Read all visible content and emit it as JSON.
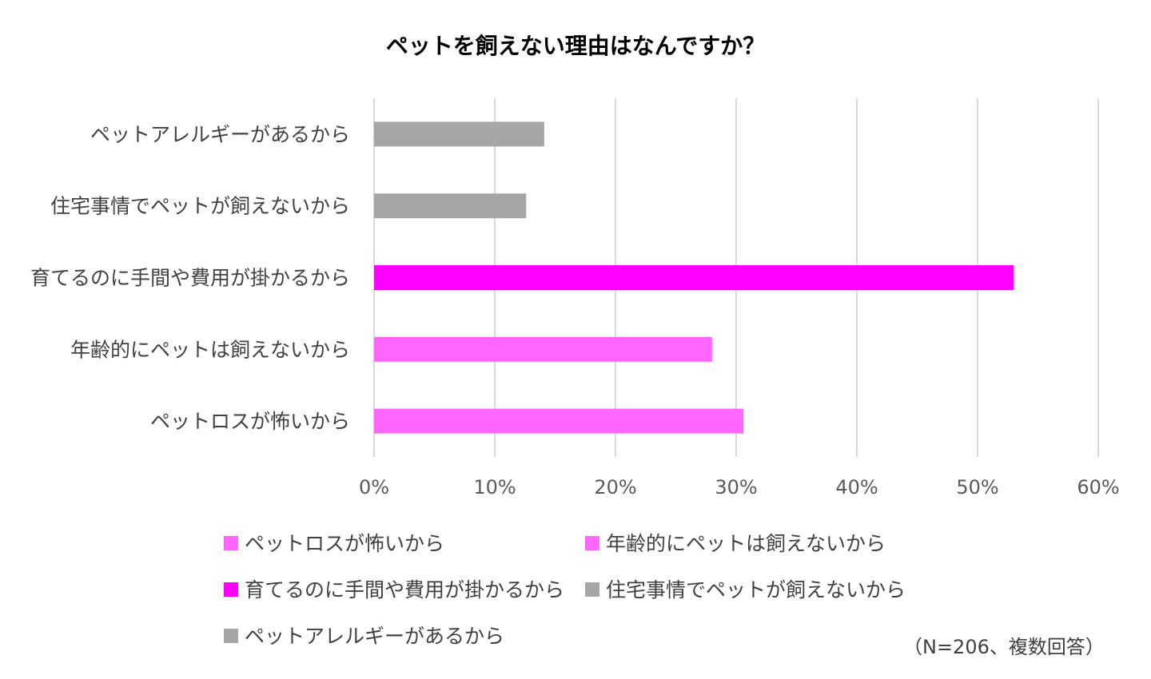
{
  "chart_data": {
    "type": "bar",
    "orientation": "horizontal",
    "title": "ペットを飼えない理由はなんですか？",
    "categories": [
      "ペットアレルギーがあるから",
      "住宅事情でペットが飼えないから",
      "育てるのに手間や費用が掛かるから",
      "年齢的にペットは飼えないから",
      "ペットロスが怖いから"
    ],
    "values": [
      14.1,
      12.6,
      53.0,
      28.0,
      30.6
    ],
    "colors": [
      "#a6a6a6",
      "#a6a6a6",
      "#ff00ff",
      "#ff66ff",
      "#ff66ff"
    ],
    "xlim": [
      0,
      60
    ],
    "xticks": [
      "0%",
      "10%",
      "20%",
      "30%",
      "40%",
      "50%",
      "60%"
    ],
    "grid": true,
    "gridColor": "#d9d9d9",
    "legend": {
      "placement": "bottom",
      "entries": [
        {
          "label": "ペットロスが怖いから",
          "color": "#ff66ff"
        },
        {
          "label": "年齢的にペットは飼えないから",
          "color": "#ff66ff"
        },
        {
          "label": "育てるのに手間や費用が掛かるから",
          "color": "#ff00ff"
        },
        {
          "label": "住宅事情でペットが飼えないから",
          "color": "#a6a6a6"
        },
        {
          "label": "ペットアレルギーがあるから",
          "color": "#a6a6a6"
        }
      ]
    },
    "note": "（N=206、複数回答）"
  }
}
